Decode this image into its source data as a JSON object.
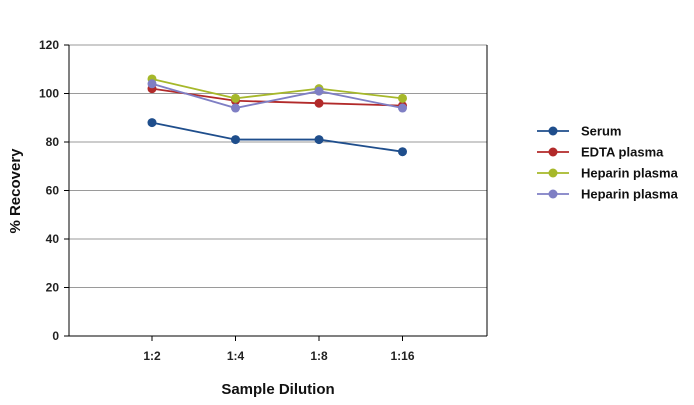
{
  "chart_data": {
    "type": "line",
    "title": "",
    "xlabel": "Sample Dilution",
    "ylabel": "% Recovery",
    "categories": [
      "1:2",
      "1:4",
      "1:8",
      "1:16"
    ],
    "ylim": [
      0,
      120
    ],
    "yticks": [
      0,
      20,
      40,
      60,
      80,
      100,
      120
    ],
    "grid": true,
    "legend_position": "right",
    "series": [
      {
        "name": "Serum",
        "color": "#1f4e8c",
        "values": [
          88,
          81,
          81,
          76
        ]
      },
      {
        "name": "EDTA plasma",
        "color": "#b22a2a",
        "values": [
          102,
          97,
          96,
          95
        ]
      },
      {
        "name": "Heparin plasma",
        "color": "#a6b82a",
        "values": [
          106,
          98,
          102,
          98
        ]
      },
      {
        "name": "Heparin plasma",
        "color": "#7f7fc4",
        "values": [
          104,
          94,
          101,
          94
        ]
      }
    ]
  }
}
